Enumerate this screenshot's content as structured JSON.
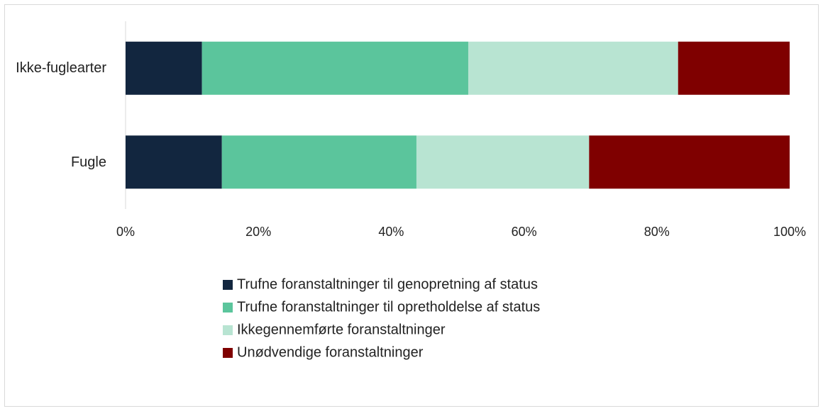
{
  "chart_data": {
    "type": "stacked-barh",
    "categories": [
      "Ikke-fuglearter",
      "Fugle"
    ],
    "series": [
      {
        "name": "Trufne foranstaltninger til genopretning af status",
        "color": "#12263f",
        "values": [
          11.5,
          14.5
        ]
      },
      {
        "name": "Trufne foranstaltninger til opretholdelse af status",
        "color": "#5bc59c",
        "values": [
          40.1,
          29.3
        ]
      },
      {
        "name": "Ikkegennemførte foranstaltninger",
        "color": "#b8e4d2",
        "values": [
          31.6,
          26.0
        ]
      },
      {
        "name": "Unødvendige foranstaltninger",
        "color": "#7f0000",
        "values": [
          16.8,
          30.2
        ]
      }
    ],
    "xlim": [
      0,
      100
    ],
    "xticks": [
      {
        "value": 0,
        "label": "0%"
      },
      {
        "value": 20,
        "label": "20%"
      },
      {
        "value": 40,
        "label": "40%"
      },
      {
        "value": 60,
        "label": "60%"
      },
      {
        "value": 80,
        "label": "80%"
      },
      {
        "value": 100,
        "label": "100%"
      }
    ],
    "legend": "bottom"
  }
}
